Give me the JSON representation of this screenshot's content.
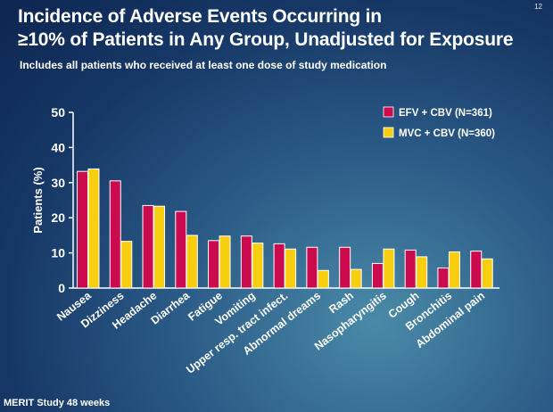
{
  "slide": {
    "number": "12",
    "title": "Incidence of Adverse Events Occurring in\n≥10% of Patients in Any Group, Unadjusted for Exposure",
    "subtitle": "Includes all patients who received at least one dose of study medication",
    "footer": "MERIT Study 48 weeks"
  },
  "colors": {
    "efv": "#cc0a4e",
    "mvc": "#f7cf10",
    "text": "#ffffff"
  },
  "chart_data": {
    "type": "bar",
    "title": "",
    "xlabel": "",
    "ylabel": "Patients (%)",
    "ylim": [
      0,
      50
    ],
    "yticks": [
      0,
      10,
      20,
      30,
      40,
      50
    ],
    "grid": false,
    "legend_position": "top-right",
    "categories": [
      "Nausea",
      "Dizziness",
      "Headache",
      "Diarrhea",
      "Fatigue",
      "Vomiting",
      "Upper resp. tract infect.",
      "Abnormal dreams",
      "Rash",
      "Nasopharyngitis",
      "Cough",
      "Bronchitis",
      "Abdominal pain"
    ],
    "series": [
      {
        "name": "EFV + CBV (N=361)",
        "values": [
          33.2,
          30.5,
          23.5,
          21.8,
          13.5,
          14.8,
          12.6,
          11.6,
          11.6,
          7.0,
          10.8,
          5.7,
          10.5
        ]
      },
      {
        "name": "MVC + CBV (N=360)",
        "values": [
          33.9,
          13.3,
          23.3,
          15.0,
          14.8,
          12.8,
          11.1,
          5.0,
          5.3,
          11.1,
          8.9,
          10.3,
          8.3
        ]
      }
    ]
  }
}
